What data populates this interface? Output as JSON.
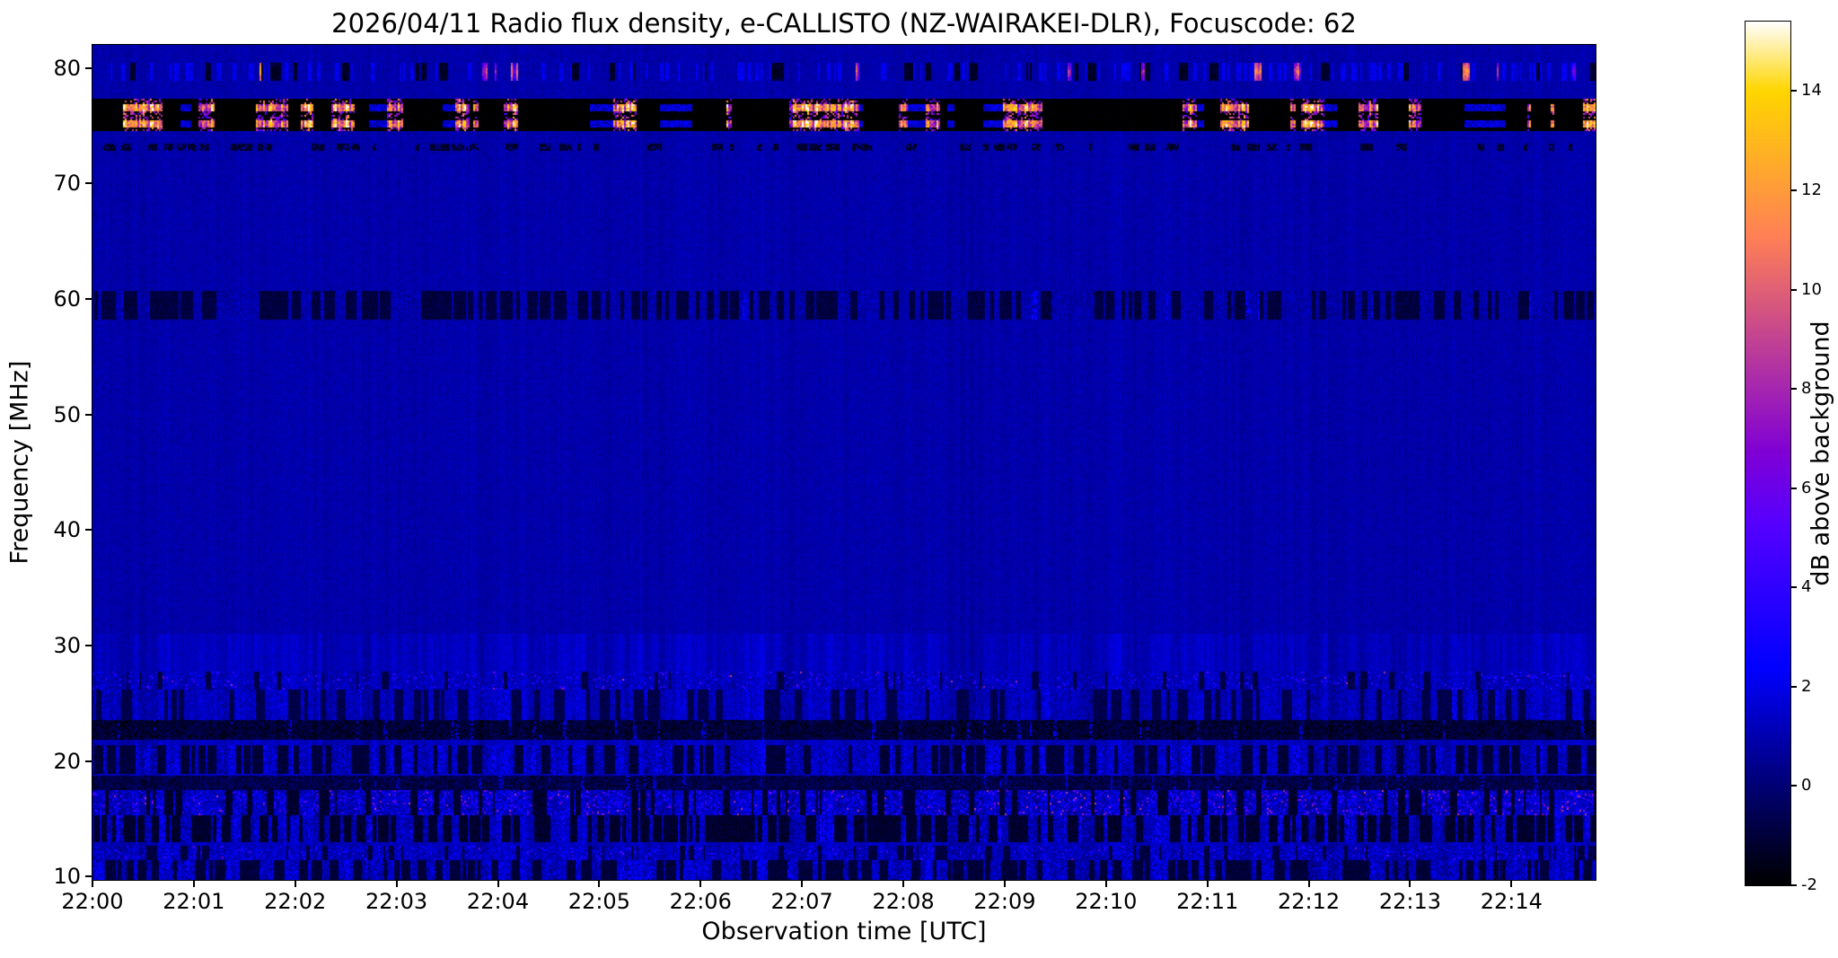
{
  "page": {
    "background": "#ffffff"
  },
  "chart_data": {
    "type": "heatmap",
    "title": "2026/04/11  Radio flux density, e-CALLISTO (NZ-WAIRAKEI-DLR), Focuscode: 62",
    "xlabel": "Observation time [UTC]",
    "ylabel": "Frequency [MHz]",
    "colorbar_label": "dB above background",
    "colormap": "gnuplot2",
    "legend": "none",
    "grid": false,
    "x_tick_labels": [
      "22:00",
      "22:01",
      "22:02",
      "22:03",
      "22:04",
      "22:05",
      "22:06",
      "22:07",
      "22:08",
      "22:09",
      "22:10",
      "22:11",
      "22:12",
      "22:13",
      "22:14"
    ],
    "x_range_minutes": [
      0,
      14.83
    ],
    "y_tick_values": [
      10,
      20,
      30,
      40,
      50,
      60,
      70,
      80
    ],
    "y_range_mhz": [
      9.7,
      82.0
    ],
    "colorbar_ticks": [
      -2,
      0,
      2,
      4,
      6,
      8,
      10,
      12,
      14
    ],
    "value_range_db": [
      -2,
      15.4
    ],
    "background_level_db": 0.9,
    "seed": 1337,
    "features": [
      {
        "name": "strong-rfi-band-75-77MHz",
        "kind": "heavy-rfi",
        "f_low": 74.5,
        "f_high": 77.3,
        "bright_rows": [
          [
            74.9,
            75.5
          ],
          [
            76.2,
            76.9
          ]
        ],
        "p_black": 0.5,
        "p_bright": 0.28,
        "bright_db": [
          7,
          15.4
        ],
        "black_db": -2.6
      },
      {
        "name": "sporadic-bursts-79-80MHz",
        "kind": "sporadic",
        "f_low": 78.9,
        "f_high": 80.5,
        "p_bright": 0.02,
        "bright_db": [
          5,
          14
        ],
        "p_dark": 0.045,
        "dark_db": -1.6,
        "p_tick": 0.16,
        "tick_db": 1.2
      },
      {
        "name": "dark-dashes-73MHz",
        "kind": "dark-dashes",
        "f_low": 72.8,
        "f_high": 73.5,
        "p_dark": 0.1,
        "dark_db": -1.3
      },
      {
        "name": "mottled-band-59MHz",
        "kind": "mottled",
        "f_low": 58.2,
        "f_high": 60.7,
        "p_dark": 0.2,
        "dark_db": -0.9,
        "p_bright": 0.02,
        "bright_db": [
          1.5,
          3
        ],
        "noise": 0.5
      },
      {
        "name": "speckle-band-27MHz",
        "kind": "speckle",
        "f_low": 26.2,
        "f_high": 27.7,
        "base": 1.1,
        "p_bright": 0.07,
        "bright_db": [
          2,
          4.5
        ],
        "p_hot": 0.004,
        "hot_db": [
          5,
          9
        ],
        "p_dark": 0.05,
        "dark_db": -0.8,
        "noise": 0.6
      },
      {
        "name": "mottled-band-24MHz",
        "kind": "mottled",
        "f_low": 23.6,
        "f_high": 26.2,
        "p_dark": 0.12,
        "dark_db": -0.7,
        "p_bright": 0.03,
        "bright_db": [
          1.2,
          2.8
        ],
        "noise": 0.55
      },
      {
        "name": "dark-band-22.7MHz",
        "kind": "dark",
        "f_low": 21.8,
        "f_high": 23.5,
        "base": -1.1,
        "noise": 0.7,
        "p_bright": 0.05,
        "bright_db": [
          0.5,
          2.2
        ]
      },
      {
        "name": "mottled-band-20MHz",
        "kind": "mottled",
        "f_low": 18.8,
        "f_high": 21.4,
        "p_dark": 0.15,
        "dark_db": -1.0,
        "p_bright": 0.06,
        "bright_db": [
          1.2,
          3.2
        ],
        "noise": 0.8
      },
      {
        "name": "dark-band-18MHz",
        "kind": "dark",
        "f_low": 17.4,
        "f_high": 18.7,
        "base": -0.8,
        "noise": 0.7,
        "p_bright": 0.06,
        "bright_db": [
          0.5,
          2.2
        ]
      },
      {
        "name": "active-band-16.5MHz",
        "kind": "active",
        "f_low": 15.3,
        "f_high": 17.4,
        "base": 1.1,
        "p_bright": 0.2,
        "bright_db": [
          1.5,
          4.2
        ],
        "p_hot": 0.016,
        "hot_db": [
          4.5,
          9
        ],
        "hot_clusters_min": [
          [
            2.8,
            5.3
          ],
          [
            8.8,
            14.83
          ]
        ],
        "cluster_boost": 3.2,
        "p_dark": 0.11,
        "dark_db": -1.2,
        "noise": 0.85
      },
      {
        "name": "mottled-band-14MHz",
        "kind": "mottled",
        "f_low": 13.0,
        "f_high": 15.3,
        "p_dark": 0.26,
        "dark_db": -1.2,
        "p_bright": 0.08,
        "bright_db": [
          1.2,
          3.6
        ],
        "noise": 0.9
      },
      {
        "name": "speckle-band-12MHz",
        "kind": "speckle",
        "f_low": 11.4,
        "f_high": 12.7,
        "base": 1.1,
        "p_bright": 0.12,
        "bright_db": [
          1.5,
          3.8
        ],
        "p_hot": 0.006,
        "hot_db": [
          4,
          7
        ],
        "p_dark": 0.07,
        "dark_db": -0.9,
        "noise": 0.7
      },
      {
        "name": "mottled-band-10.5MHz",
        "kind": "mottled",
        "f_low": 9.7,
        "f_high": 11.4,
        "p_dark": 0.18,
        "dark_db": -1.0,
        "p_bright": 0.07,
        "bright_db": [
          1.2,
          3
        ],
        "noise": 0.9
      }
    ]
  }
}
